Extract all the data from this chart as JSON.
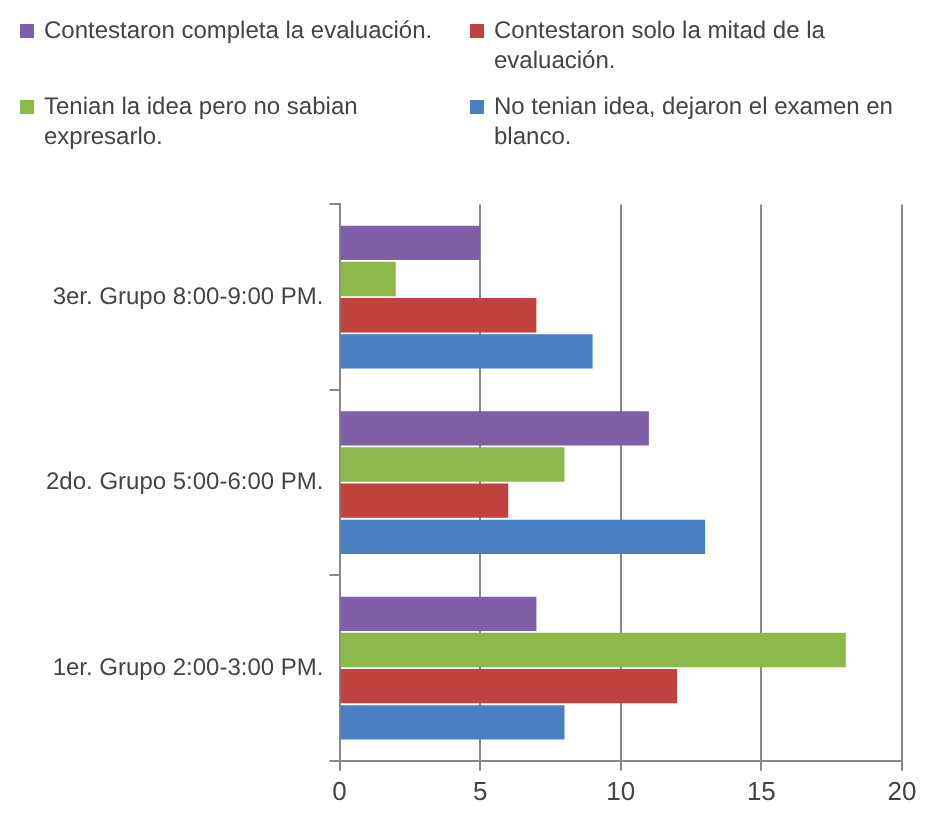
{
  "chart_data": {
    "type": "bar",
    "orientation": "horizontal",
    "categories": [
      "3er. Grupo 8:00-9:00 PM.",
      "2do. Grupo 5:00-6:00 PM.",
      "1er. Grupo 2:00-3:00 PM."
    ],
    "series": [
      {
        "name": "Contestaron completa la evaluación.",
        "color": "#7e5fa8",
        "values": [
          5,
          11,
          7
        ]
      },
      {
        "name": "Tenian la idea pero no sabian expresarlo.",
        "color": "#8db84a",
        "values": [
          2,
          8,
          18
        ]
      },
      {
        "name": "Contestaron solo la mitad de la evaluación.",
        "color": "#c0433f",
        "values": [
          7,
          6,
          12
        ]
      },
      {
        "name": "No tenian idea, dejaron el examen en blanco.",
        "color": "#4a7fc1",
        "values": [
          9,
          13,
          8
        ]
      }
    ],
    "xlim": [
      0,
      20
    ],
    "xticks": [
      0,
      5,
      10,
      15,
      20
    ],
    "grid": "x",
    "legend": "top"
  }
}
